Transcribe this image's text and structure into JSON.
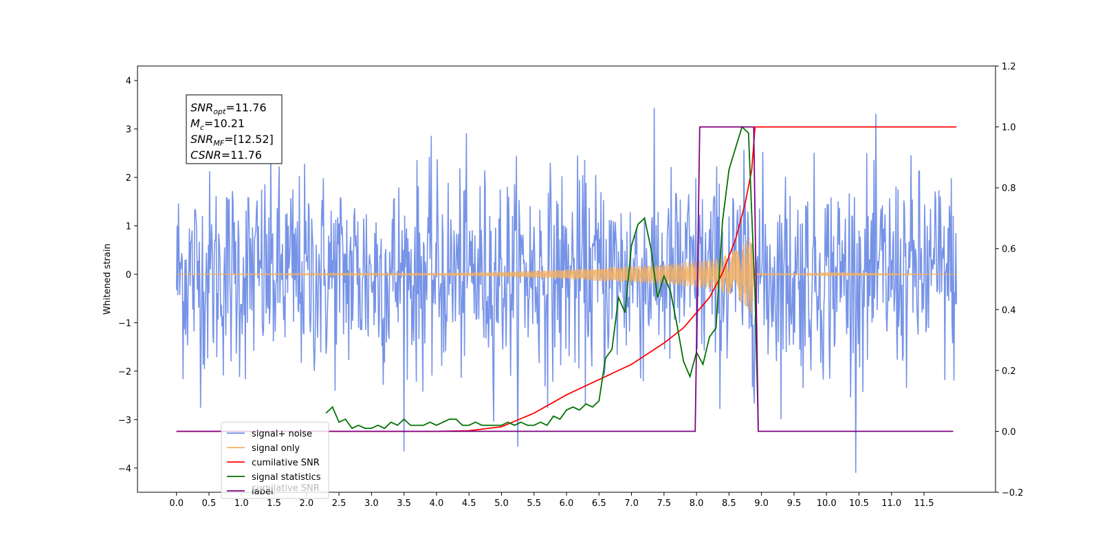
{
  "chart_data": {
    "type": "line",
    "ylabel": "Whitened strain",
    "xlim": [
      -0.6,
      12.6
    ],
    "ylim": [
      -4.5,
      4.3
    ],
    "y2lim": [
      -0.2,
      1.2
    ],
    "x_ticks": [
      "0.0",
      "0.5",
      "1.0",
      "1.5",
      "2.0",
      "2.5",
      "3.0",
      "3.5",
      "4.0",
      "4.5",
      "5.0",
      "5.5",
      "6.0",
      "6.5",
      "7.0",
      "7.5",
      "8.0",
      "8.5",
      "9.0",
      "9.5",
      "10.0",
      "10.5",
      "11.0",
      "11.5"
    ],
    "y_ticks": [
      "4",
      "3",
      "2",
      "1",
      "0",
      "−1",
      "−2",
      "−3",
      "−4"
    ],
    "y2_ticks": [
      "1.2",
      "1.0",
      "0.8",
      "0.6",
      "0.4",
      "0.2",
      "0.0",
      "−0.2"
    ],
    "info_box": {
      "snr_opt": "=11.76",
      "mc": "=10.21",
      "snr_mf": "=[12.52]",
      "csnr": "=11.76"
    },
    "legend": {
      "position": "lower-left",
      "entries": [
        {
          "label": "signal+ noise",
          "color": "#6f8de6"
        },
        {
          "label": "signal only",
          "color": "#f5b060"
        },
        {
          "label": "cumilative SNR",
          "color": "#ff0000"
        },
        {
          "label": "signal statistics",
          "color": "#007000"
        },
        {
          "label": "label",
          "color": "#800080"
        }
      ],
      "overlapped_text": "cumilative SNR"
    },
    "series": [
      {
        "name": "signal+ noise",
        "axis": "left",
        "color": "#6f8de6",
        "x_range": [
          0.0,
          12.0
        ],
        "noise_std": 1.0,
        "samples": 1200
      },
      {
        "name": "signal only",
        "axis": "left",
        "color": "#f5b060",
        "envelope_x": [
          0.0,
          4.0,
          5.0,
          6.0,
          7.0,
          7.5,
          8.0,
          8.3,
          8.5,
          8.7,
          8.85,
          8.9,
          9.0,
          12.0
        ],
        "envelope_y": [
          0.0,
          0.02,
          0.05,
          0.1,
          0.17,
          0.2,
          0.27,
          0.33,
          0.42,
          0.6,
          0.85,
          0.0,
          0.02,
          0.0
        ]
      },
      {
        "name": "cumilative SNR",
        "axis": "right",
        "color": "#ff0000",
        "x": [
          0.0,
          4.0,
          4.5,
          5.0,
          5.5,
          6.0,
          6.5,
          7.0,
          7.5,
          7.8,
          8.0,
          8.2,
          8.4,
          8.6,
          8.75,
          8.85,
          8.9,
          12.0
        ],
        "y": [
          0.0,
          0.0,
          0.002,
          0.015,
          0.06,
          0.12,
          0.17,
          0.22,
          0.29,
          0.34,
          0.39,
          0.44,
          0.52,
          0.63,
          0.75,
          0.86,
          1.0,
          1.0
        ]
      },
      {
        "name": "signal statistics",
        "axis": "right",
        "color": "#007000",
        "x": [
          2.3,
          2.4,
          2.5,
          2.6,
          2.7,
          2.8,
          2.9,
          3.0,
          3.1,
          3.2,
          3.3,
          3.4,
          3.5,
          3.6,
          3.7,
          3.8,
          3.9,
          4.0,
          4.1,
          4.2,
          4.3,
          4.4,
          4.5,
          4.6,
          4.7,
          4.8,
          4.9,
          5.0,
          5.1,
          5.2,
          5.3,
          5.4,
          5.5,
          5.6,
          5.7,
          5.8,
          5.9,
          6.0,
          6.1,
          6.2,
          6.3,
          6.4,
          6.5,
          6.6,
          6.7,
          6.8,
          6.9,
          7.0,
          7.1,
          7.2,
          7.3,
          7.4,
          7.5,
          7.6,
          7.7,
          7.8,
          7.9,
          8.0,
          8.1,
          8.2,
          8.3,
          8.4,
          8.5,
          8.6,
          8.7,
          8.8,
          8.9,
          8.95
        ],
        "y": [
          0.06,
          0.08,
          0.03,
          0.04,
          0.01,
          0.02,
          0.01,
          0.01,
          0.02,
          0.01,
          0.03,
          0.02,
          0.04,
          0.02,
          0.02,
          0.02,
          0.03,
          0.02,
          0.03,
          0.04,
          0.04,
          0.02,
          0.02,
          0.03,
          0.02,
          0.02,
          0.02,
          0.02,
          0.03,
          0.02,
          0.03,
          0.02,
          0.02,
          0.03,
          0.02,
          0.05,
          0.04,
          0.07,
          0.08,
          0.07,
          0.09,
          0.08,
          0.1,
          0.24,
          0.27,
          0.44,
          0.39,
          0.61,
          0.68,
          0.7,
          0.6,
          0.44,
          0.51,
          0.46,
          0.35,
          0.23,
          0.18,
          0.26,
          0.22,
          0.31,
          0.34,
          0.69,
          0.86,
          0.93,
          1.0,
          0.98,
          0.45,
          0.02
        ]
      },
      {
        "name": "label",
        "axis": "right",
        "color": "#800080",
        "x": [
          0.0,
          7.98,
          8.05,
          8.88,
          8.95,
          11.95
        ],
        "y": [
          0.0,
          0.0,
          1.0,
          1.0,
          0.0,
          0.0
        ]
      }
    ]
  }
}
